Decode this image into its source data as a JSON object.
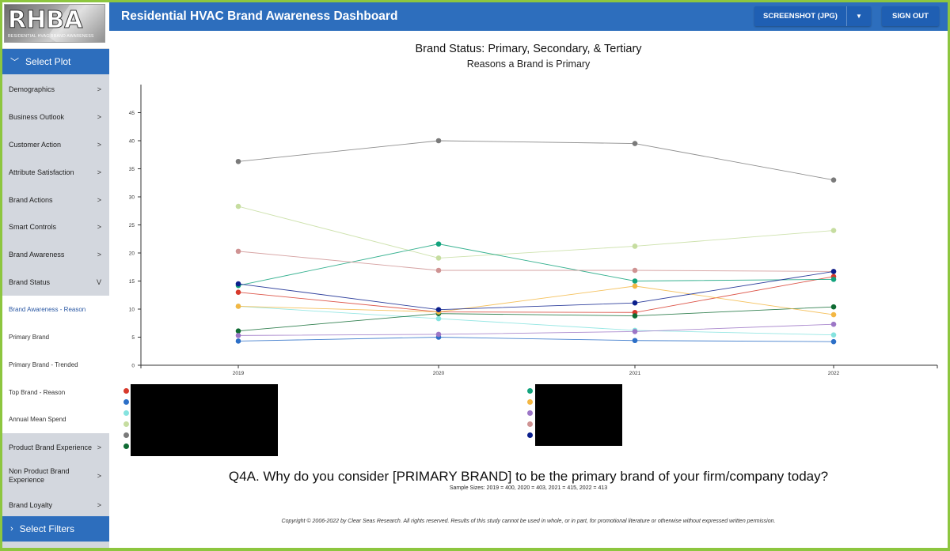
{
  "logo": {
    "text": "RHBA",
    "subtext": "RESIDENTIAL HVAC BRAND AWARENESS"
  },
  "header": {
    "title": "Residential HVAC Brand Awareness Dashboard",
    "screenshot_label": "SCREENSHOT (JPG)",
    "signout_label": "SIGN OUT"
  },
  "sidebar": {
    "select_plot": "Select Plot",
    "select_filters": "Select Filters",
    "items": [
      {
        "label": "Demographics",
        "arrow": ">"
      },
      {
        "label": "Business Outlook",
        "arrow": ">"
      },
      {
        "label": "Customer Action",
        "arrow": ">"
      },
      {
        "label": "Attribute Satisfaction",
        "arrow": ">"
      },
      {
        "label": "Brand Actions",
        "arrow": ">"
      },
      {
        "label": "Smart Controls",
        "arrow": ">"
      },
      {
        "label": "Brand Awareness",
        "arrow": ">"
      },
      {
        "label": "Brand Status",
        "arrow": "V"
      }
    ],
    "subitems": [
      {
        "label": "Brand Awareness - Reason"
      },
      {
        "label": "Primary Brand"
      },
      {
        "label": "Primary Brand - Trended"
      },
      {
        "label": "Top Brand - Reason"
      },
      {
        "label": "Annual Mean Spend"
      }
    ],
    "items_after": [
      {
        "label": "Product Brand Experience",
        "arrow": ">"
      },
      {
        "label": "Non Product Brand Experience",
        "arrow": ">"
      },
      {
        "label": "Brand Loyalty",
        "arrow": ">"
      }
    ]
  },
  "chart_data": {
    "type": "line",
    "title": "Brand Status: Primary, Secondary, & Tertiary",
    "subtitle": "Reasons a Brand is Primary",
    "x": [
      "2019",
      "2020",
      "2021",
      "2022"
    ],
    "ylim": [
      0,
      50
    ],
    "yticks": [
      0,
      5,
      10,
      15,
      20,
      25,
      30,
      35,
      40,
      45
    ],
    "grid": false,
    "series": [
      {
        "color": "#d73a2c",
        "values": [
          13.0,
          9.5,
          9.4,
          15.8
        ]
      },
      {
        "color": "#2c6fc7",
        "values": [
          4.3,
          5.0,
          4.4,
          4.2
        ]
      },
      {
        "color": "#85e3df",
        "values": [
          10.5,
          8.3,
          6.2,
          5.4
        ]
      },
      {
        "color": "#c6dda0",
        "values": [
          28.3,
          19.1,
          21.2,
          24.0
        ]
      },
      {
        "color": "#7a7a7a",
        "values": [
          36.3,
          40.0,
          39.5,
          33.0
        ]
      },
      {
        "color": "#0f6b33",
        "values": [
          6.1,
          9.2,
          8.8,
          10.4
        ]
      },
      {
        "color": "#13a37d",
        "values": [
          14.2,
          21.6,
          15.0,
          15.3
        ]
      },
      {
        "color": "#f3b743",
        "values": [
          10.5,
          9.5,
          14.1,
          9.0
        ]
      },
      {
        "color": "#9c76c6",
        "values": [
          5.3,
          5.5,
          6.0,
          7.3
        ]
      },
      {
        "color": "#cf9393",
        "values": [
          20.3,
          16.9,
          16.9,
          16.7
        ]
      },
      {
        "color": "#0b1f8c",
        "values": [
          14.5,
          9.9,
          11.1,
          16.7
        ]
      }
    ]
  },
  "legend_left_colors": [
    "#d73a2c",
    "#2c6fc7",
    "#85e3df",
    "#c6dda0",
    "#7a7a7a",
    "#0f6b33"
  ],
  "legend_right_colors": [
    "#13a37d",
    "#f3b743",
    "#9c76c6",
    "#cf9393",
    "#0b1f8c"
  ],
  "question": "Q4A. Why do you consider [PRIMARY BRAND] to be the primary brand of your firm/company today?",
  "sample_sizes": "Sample Sizes: 2019 = 400, 2020 = 403, 2021 = 415, 2022 = 413",
  "copyright": "Copyright © 2006-2022 by Clear Seas Research. All rights reserved. Results of this study cannot be used in whole, or in part, for promotional literature or otherwise without expressed written permission."
}
